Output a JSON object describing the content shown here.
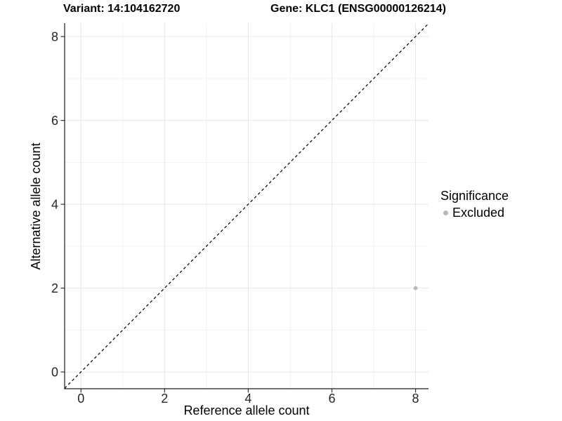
{
  "titles": {
    "left": "Variant: 14:104162720",
    "right": "Gene: KLC1 (ENSG00000126214)"
  },
  "legend": {
    "title": "Significance",
    "items": [
      {
        "label": "Excluded",
        "color": "#b8b8b8"
      }
    ]
  },
  "chart_data": {
    "type": "scatter",
    "title_left": "Variant: 14:104162720",
    "title_right": "Gene: KLC1 (ENSG00000126214)",
    "xlabel": "Reference allele count",
    "ylabel": "Alternative allele count",
    "xlim": [
      -0.39,
      8.31
    ],
    "ylim": [
      -0.4,
      8.32
    ],
    "x_ticks": [
      0,
      2,
      4,
      6,
      8
    ],
    "y_ticks": [
      0,
      2,
      4,
      6,
      8
    ],
    "x_minor_ticks": [
      1,
      3,
      5,
      7
    ],
    "y_minor_ticks": [
      1,
      3,
      5,
      7
    ],
    "grid": true,
    "legend_position": "right",
    "series": [
      {
        "name": "Excluded",
        "color": "#b8b8b8",
        "point_radius": 2.8,
        "points": [
          {
            "x": 8,
            "y": 2
          }
        ]
      }
    ],
    "reference_line": {
      "type": "identity",
      "style": "dashed",
      "color": "#000000"
    }
  },
  "colors": {
    "background": "#ffffff",
    "panel_background": "#ffffff",
    "grid_major": "#e6e6e6",
    "grid_minor": "#f3f3f3",
    "axis_line": "#1a1a1a",
    "tick": "#333333",
    "tick_label": "#262626",
    "point": "#b8b8b8"
  }
}
